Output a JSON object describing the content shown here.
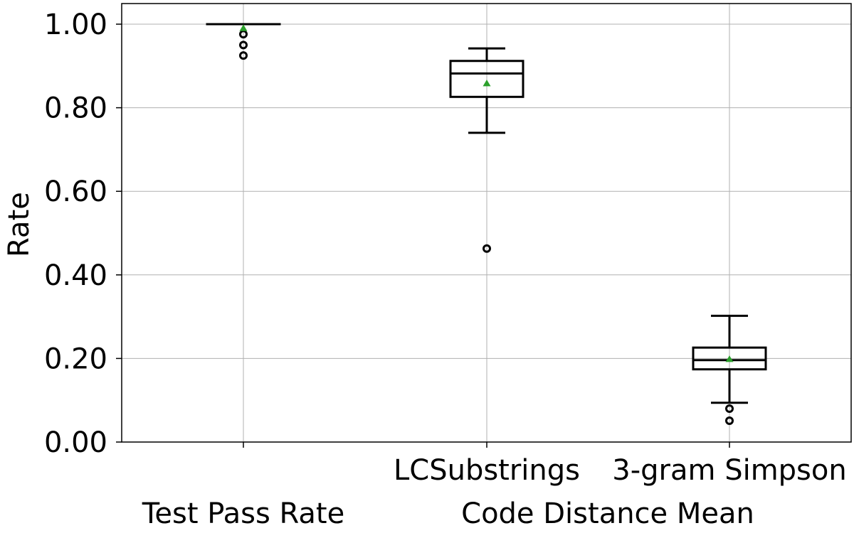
{
  "chart_data": {
    "type": "box",
    "ylabel": "Rate",
    "ylim": [
      0,
      1.05
    ],
    "yticks": [
      0.0,
      0.2,
      0.4,
      0.6,
      0.8,
      1.0
    ],
    "ytick_labels": [
      "0.00",
      "0.20",
      "0.40",
      "0.60",
      "0.80",
      "1.00"
    ],
    "grid": true,
    "mean_marker_color": "#2ca02c",
    "boxes": [
      {
        "label": "",
        "group": "Test Pass Rate",
        "whisker_low": 1.0,
        "q1": 1.0,
        "median": 1.0,
        "q3": 1.0,
        "whisker_high": 1.0,
        "mean": 0.99,
        "outliers": [
          0.976,
          0.95,
          0.925
        ]
      },
      {
        "label": "LCSubstrings",
        "group": "Code Distance Mean",
        "whisker_low": 0.74,
        "q1": 0.826,
        "median": 0.882,
        "q3": 0.912,
        "whisker_high": 0.942,
        "mean": 0.858,
        "outliers": [
          0.463
        ]
      },
      {
        "label": "3-gram Simpson",
        "group": "Code Distance Mean",
        "whisker_low": 0.094,
        "q1": 0.174,
        "median": 0.196,
        "q3": 0.226,
        "whisker_high": 0.302,
        "mean": 0.198,
        "outliers": [
          0.08,
          0.051
        ]
      }
    ],
    "group_labels": [
      "Test Pass Rate",
      "Code Distance Mean"
    ]
  }
}
